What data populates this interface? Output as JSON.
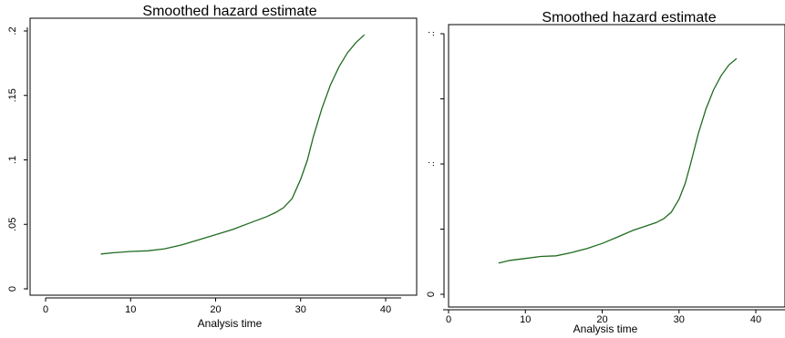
{
  "chart_data": [
    {
      "type": "line",
      "title": "Smoothed hazard estimate",
      "xlabel": "Analysis time",
      "ylabel": "",
      "xlim": [
        0,
        45
      ],
      "ylim": [
        -0.005,
        0.205
      ],
      "xticks": [
        0,
        10,
        20,
        30,
        40
      ],
      "xtick_labels": [
        "0",
        "10",
        "20",
        "30",
        "40"
      ],
      "yticks": [
        0,
        0.05,
        0.1,
        0.15,
        0.2
      ],
      "ytick_labels": [
        "0",
        ".05",
        ".1",
        ".15",
        ".2"
      ],
      "grid": false,
      "series": [
        {
          "color": "#1f6b1f",
          "x": [
            6.5,
            8,
            10,
            12,
            14,
            16,
            18,
            20,
            22,
            24,
            26,
            27,
            28,
            29,
            30,
            30.8,
            31.5,
            32.5,
            33.5,
            34.5,
            35.5,
            36.5,
            37.5
          ],
          "y": [
            0.027,
            0.028,
            0.029,
            0.0295,
            0.031,
            0.034,
            0.038,
            0.042,
            0.046,
            0.051,
            0.056,
            0.059,
            0.063,
            0.07,
            0.085,
            0.1,
            0.118,
            0.14,
            0.158,
            0.172,
            0.183,
            0.191,
            0.197
          ]
        }
      ]
    },
    {
      "type": "line",
      "title": "Smoothed hazard estimate",
      "xlabel": "Analysis time",
      "ylabel": "",
      "xlim": [
        0,
        45
      ],
      "ylim": [
        -0.005,
        0.205
      ],
      "xticks": [
        0,
        10,
        20,
        30,
        40
      ],
      "xtick_labels": [
        "0",
        "10",
        "20",
        "30",
        "40"
      ],
      "yticks": [
        0,
        0.05,
        0.1,
        0.15,
        0.2
      ],
      "ytick_labels": [
        "0",
        "",
        ".:",
        "",
        ".:"
      ],
      "grid": false,
      "series": [
        {
          "color": "#1f6b1f",
          "x": [
            6.5,
            8,
            10,
            12,
            14,
            16,
            18,
            20,
            22,
            24,
            26,
            27,
            28,
            29,
            30,
            30.8,
            31.5,
            32.5,
            33.5,
            34.5,
            35.5,
            36.5,
            37.5
          ],
          "y": [
            0.024,
            0.026,
            0.0275,
            0.029,
            0.0295,
            0.032,
            0.035,
            0.039,
            0.044,
            0.049,
            0.053,
            0.055,
            0.058,
            0.063,
            0.073,
            0.085,
            0.1,
            0.123,
            0.142,
            0.157,
            0.168,
            0.176,
            0.181
          ]
        }
      ]
    }
  ]
}
